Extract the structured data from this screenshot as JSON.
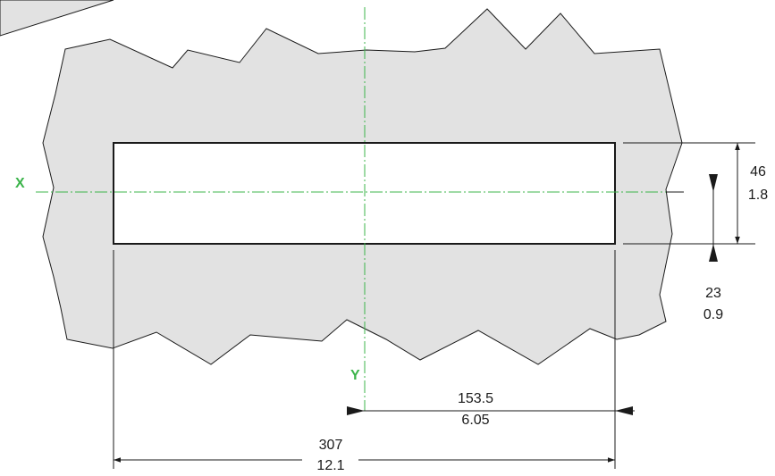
{
  "axes": {
    "x_label": "X",
    "y_label": "Y",
    "color": "#3cb44b"
  },
  "dimensions": {
    "width_mm": "307",
    "width_in": "12.1",
    "half_width_mm": "153.5",
    "half_width_in": "6.05",
    "height_mm": "46",
    "height_in": "1.8",
    "half_height_mm": "23",
    "half_height_in": "0.9"
  },
  "colors": {
    "panel_fill": "#e2e2e2",
    "line": "#1a1a1a",
    "cutout_fill": "#ffffff"
  }
}
